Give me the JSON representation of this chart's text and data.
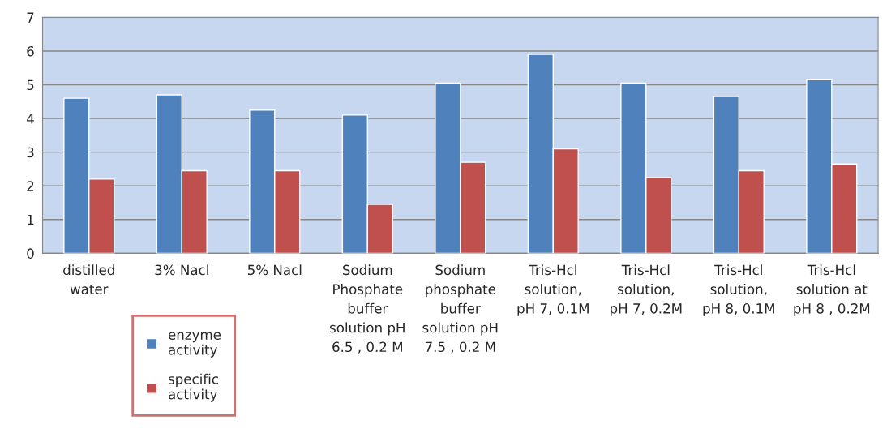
{
  "chart_data": {
    "type": "bar",
    "categories": [
      "distilled water",
      "3% Nacl",
      "5% Nacl",
      "Sodium Phosphate buffer solution pH 6.5 , 0.2 M",
      "Sodium phosphate buffer solution pH 7.5 , 0.2 M",
      "Tris-Hcl solution, pH 7, 0.1M",
      "Tris-Hcl solution, pH 7, 0.2M",
      "Tris-Hcl solution, pH 8, 0.1M",
      "Tris-Hcl solution at pH 8 , 0.2M"
    ],
    "series": [
      {
        "name": "enzyme activity",
        "color": "#4f81bd",
        "values": [
          4.6,
          4.7,
          4.25,
          4.1,
          5.05,
          5.9,
          5.05,
          4.65,
          5.15
        ]
      },
      {
        "name": "specific activity",
        "color": "#c0504d",
        "values": [
          2.2,
          2.45,
          2.45,
          1.45,
          2.7,
          3.1,
          2.25,
          2.45,
          2.65
        ]
      }
    ],
    "ylim": [
      0,
      7
    ],
    "yticks": [
      0,
      1,
      2,
      3,
      4,
      5,
      6,
      7
    ],
    "grid": "y",
    "legend": "bottom left"
  }
}
